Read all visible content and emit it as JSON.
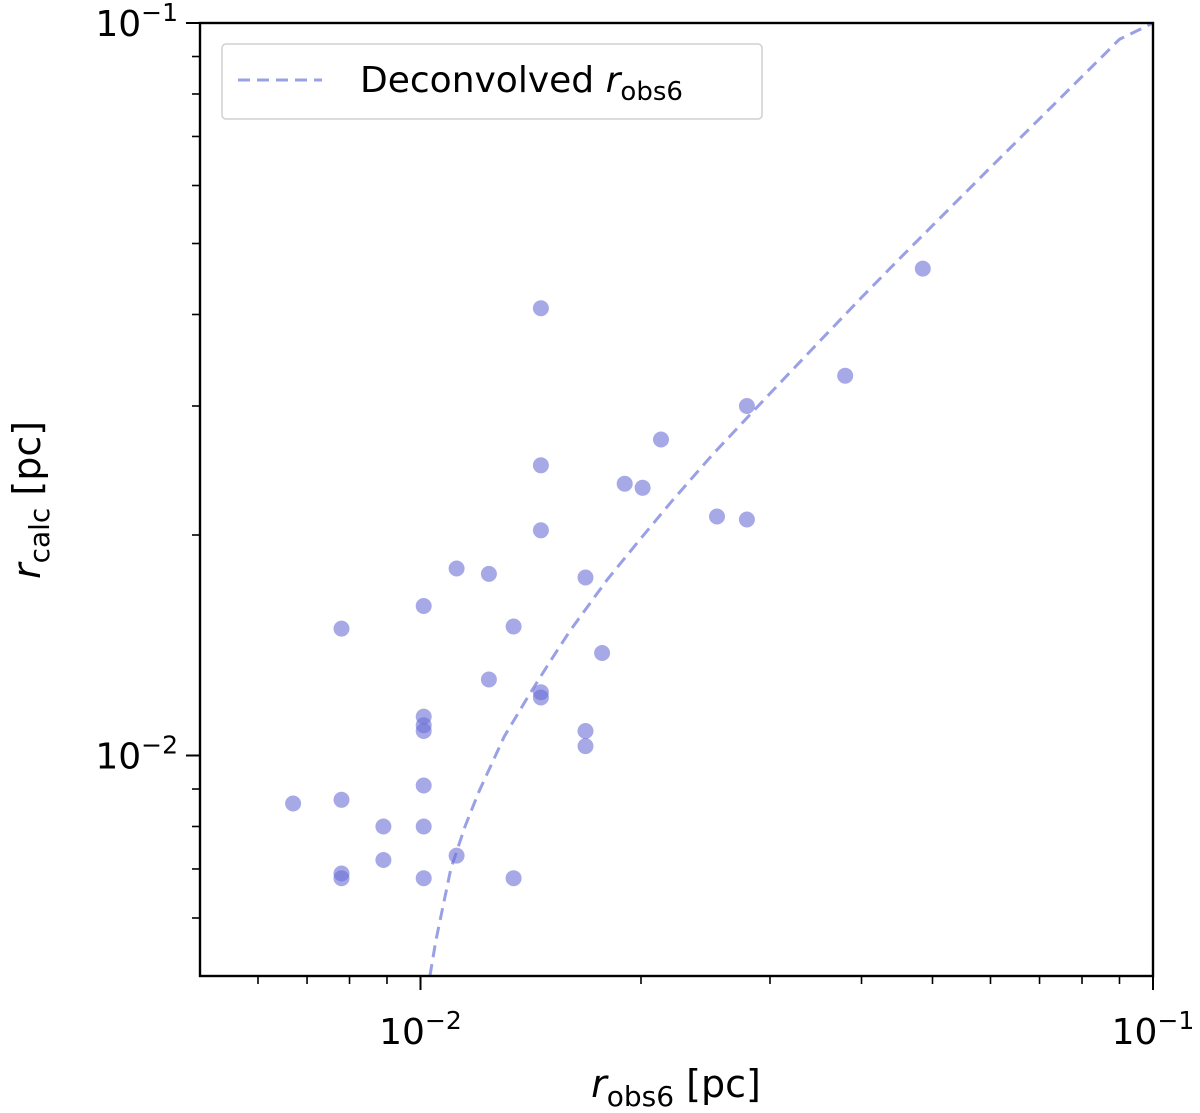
{
  "chart_data": {
    "type": "scatter",
    "title": "",
    "xlabel": {
      "var": "r",
      "sub": "obs6",
      "unit": " [pc]"
    },
    "ylabel": {
      "var": "r",
      "sub": "calc",
      "unit": " [pc]"
    },
    "xscale": "log",
    "yscale": "log",
    "xlim": [
      0.005,
      0.1
    ],
    "ylim": [
      0.005,
      0.1
    ],
    "x_major_ticks": [
      {
        "value": 0.01,
        "base": "10",
        "exp": "−2"
      },
      {
        "value": 0.1,
        "base": "10",
        "exp": "−1"
      }
    ],
    "y_major_ticks": [
      {
        "value": 0.01,
        "base": "10",
        "exp": "−2"
      },
      {
        "value": 0.1,
        "base": "10",
        "exp": "−1"
      }
    ],
    "minor_ticks": [
      0.006,
      0.007,
      0.008,
      0.009,
      0.02,
      0.03,
      0.04,
      0.05,
      0.06,
      0.07,
      0.08,
      0.09
    ],
    "legend": {
      "placement": "upper-left",
      "label_text": "Deconvolved ",
      "label_var": "r",
      "label_sub": "obs6"
    },
    "colors": {
      "points": "#6a6fd6",
      "line": "#9aa0e6",
      "axes": "#000000"
    },
    "deconvolved_line": {
      "name": "Deconvolved r_obs6",
      "style": "dashed",
      "x": [
        0.0103,
        0.0105,
        0.011,
        0.0115,
        0.012,
        0.013,
        0.014,
        0.015,
        0.016,
        0.018,
        0.02,
        0.022,
        0.025,
        0.028,
        0.03,
        0.035,
        0.04,
        0.045,
        0.05,
        0.06,
        0.07,
        0.08,
        0.09,
        0.1
      ],
      "y": [
        0.005,
        0.0056,
        0.007,
        0.008,
        0.0089,
        0.0106,
        0.012,
        0.0134,
        0.0148,
        0.0174,
        0.0198,
        0.0222,
        0.0257,
        0.029,
        0.0312,
        0.0367,
        0.0422,
        0.0476,
        0.0529,
        0.0635,
        0.074,
        0.0845,
        0.095,
        0.1
      ]
    },
    "series": [
      {
        "name": "sources",
        "points": [
          [
            0.0067,
            0.0086
          ],
          [
            0.0078,
            0.0087
          ],
          [
            0.0078,
            0.0068
          ],
          [
            0.0078,
            0.0069
          ],
          [
            0.0078,
            0.0149
          ],
          [
            0.0089,
            0.008
          ],
          [
            0.0089,
            0.0072
          ],
          [
            0.0101,
            0.016
          ],
          [
            0.0101,
            0.0113
          ],
          [
            0.0101,
            0.0108
          ],
          [
            0.0101,
            0.011
          ],
          [
            0.0101,
            0.0091
          ],
          [
            0.0101,
            0.008
          ],
          [
            0.0101,
            0.0068
          ],
          [
            0.0112,
            0.018
          ],
          [
            0.0112,
            0.0073
          ],
          [
            0.0124,
            0.0177
          ],
          [
            0.0124,
            0.0127
          ],
          [
            0.0134,
            0.015
          ],
          [
            0.0134,
            0.0068
          ],
          [
            0.0146,
            0.0408
          ],
          [
            0.0146,
            0.0249
          ],
          [
            0.0146,
            0.0203
          ],
          [
            0.0146,
            0.0122
          ],
          [
            0.0146,
            0.012
          ],
          [
            0.0168,
            0.0175
          ],
          [
            0.0168,
            0.0108
          ],
          [
            0.0168,
            0.0103
          ],
          [
            0.0177,
            0.0138
          ],
          [
            0.019,
            0.0235
          ],
          [
            0.0201,
            0.0232
          ],
          [
            0.0213,
            0.027
          ],
          [
            0.0254,
            0.0212
          ],
          [
            0.0279,
            0.03
          ],
          [
            0.0279,
            0.021
          ],
          [
            0.038,
            0.033
          ],
          [
            0.0485,
            0.0462
          ]
        ]
      }
    ]
  }
}
